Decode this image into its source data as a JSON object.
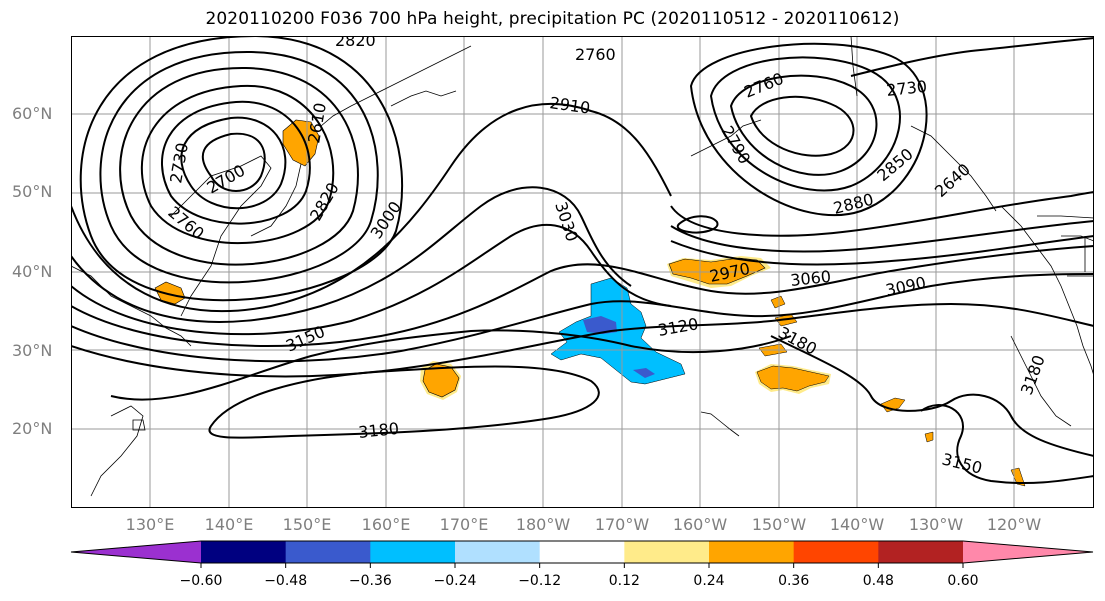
{
  "title": "2020110200 F036 700 hPa height, precipitation PC (2020110512 - 2020110612)",
  "lat_labels": [
    "60°N",
    "50°N",
    "40°N",
    "30°N",
    "20°N"
  ],
  "lon_labels": [
    "130°E",
    "140°E",
    "150°E",
    "160°E",
    "170°E",
    "180°W",
    "170°W",
    "160°W",
    "150°W",
    "140°W",
    "130°W",
    "120°W"
  ],
  "contour_labels": [
    "2820",
    "2760",
    "2910",
    "2760",
    "2730",
    "2790",
    "2850",
    "2640",
    "2880",
    "2610",
    "2730",
    "2700",
    "2760",
    "2820",
    "3000",
    "3030",
    "2970",
    "3060",
    "3090",
    "3120",
    "3150",
    "3180",
    "3180",
    "3180",
    "3150",
    "3180"
  ],
  "colorbar": {
    "colors": [
      "#9b30d0",
      "#000080",
      "#3a5acd",
      "#00bfff",
      "#b0e0ff",
      "#ffffff",
      "#ffeb8a",
      "#ffa500",
      "#ff4500",
      "#b22222",
      "#ff88aa"
    ],
    "tick_labels": [
      "−0.60",
      "−0.48",
      "−0.36",
      "−0.24",
      "−0.12",
      "0.12",
      "0.24",
      "0.36",
      "0.48",
      "0.60"
    ]
  },
  "colors": {
    "coast": "#000000",
    "grid": "#999999",
    "orange": "#ffa500",
    "light_orange": "#ffeb8a",
    "blue": "#00bfff",
    "dark_blue": "#3a5acd"
  }
}
